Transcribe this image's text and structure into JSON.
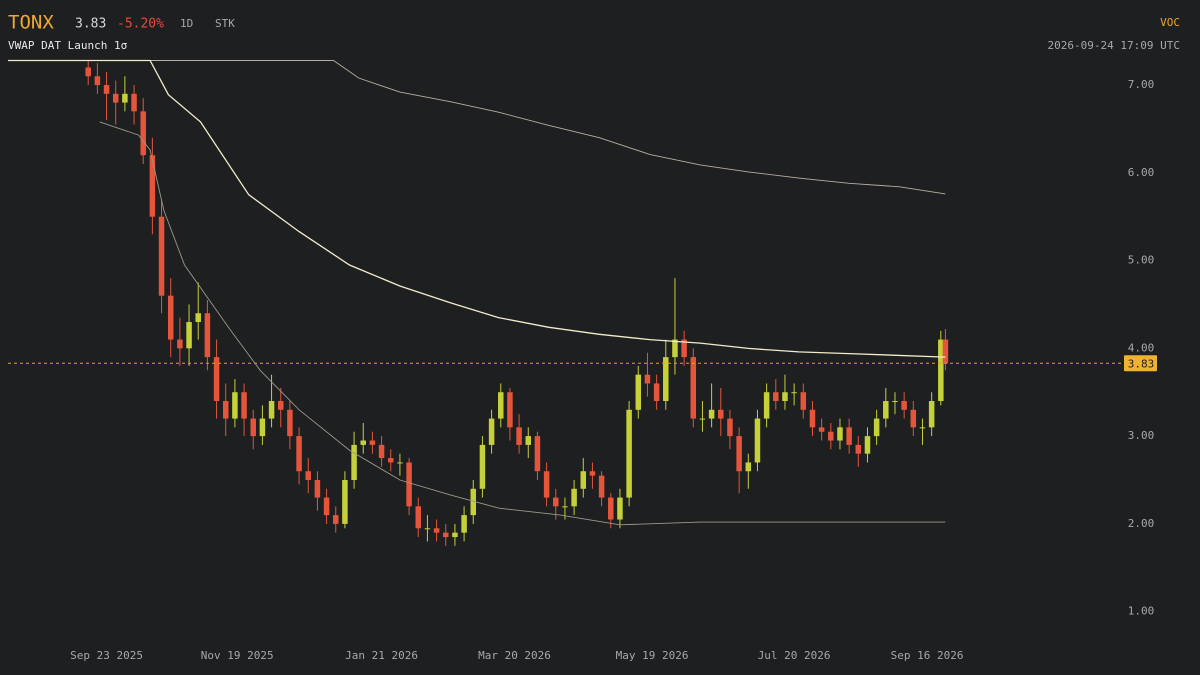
{
  "chart_data": {
    "type": "candlestick",
    "symbol": "TONX",
    "last_price": 3.83,
    "change": "-5.20%",
    "interval": "1D",
    "asset_class": "STK",
    "indicator": "VWAP DAT Launch 1σ",
    "source": "VOC",
    "timestamp": "2026-09-24 17:09 UTC",
    "up_color": "#c5d13a",
    "down_color": "#e5553b",
    "x": [
      -8,
      -4,
      0,
      4,
      8,
      12,
      16,
      20,
      24,
      28,
      32,
      36,
      40,
      44,
      48,
      52,
      56,
      60,
      64,
      68,
      72,
      76,
      80,
      84,
      88,
      92,
      96,
      100,
      104,
      108,
      112,
      116,
      120,
      124,
      128,
      132,
      136,
      140,
      144,
      148,
      152,
      156,
      160,
      164,
      168,
      172,
      176,
      180,
      184,
      188,
      192,
      196,
      200,
      204,
      208,
      212,
      216,
      220,
      224,
      228,
      232,
      236,
      240,
      244,
      248,
      252,
      256,
      260,
      264,
      268,
      272,
      276,
      280,
      284,
      288,
      292,
      296,
      300,
      304,
      308,
      312,
      316,
      320,
      324,
      328,
      332,
      336,
      340,
      344,
      348,
      352,
      356,
      360,
      364,
      366
    ],
    "open": [
      7.2,
      7.1,
      7.0,
      6.9,
      6.8,
      6.9,
      6.7,
      6.2,
      5.5,
      4.6,
      4.1,
      4.0,
      4.3,
      4.4,
      3.9,
      3.4,
      3.2,
      3.5,
      3.2,
      3.0,
      3.2,
      3.4,
      3.3,
      3.0,
      2.6,
      2.5,
      2.3,
      2.1,
      2.0,
      2.5,
      2.9,
      2.95,
      2.9,
      2.75,
      2.7,
      2.7,
      2.2,
      1.95,
      1.95,
      1.9,
      1.85,
      1.9,
      2.1,
      2.4,
      2.9,
      3.2,
      3.5,
      3.1,
      2.9,
      3.0,
      2.6,
      2.3,
      2.2,
      2.2,
      2.4,
      2.6,
      2.55,
      2.3,
      2.05,
      2.3,
      3.3,
      3.7,
      3.6,
      3.4,
      3.9,
      4.1,
      3.9,
      3.2,
      3.2,
      3.3,
      3.2,
      3.0,
      2.6,
      2.7,
      3.2,
      3.5,
      3.4,
      3.5,
      3.5,
      3.3,
      3.1,
      3.05,
      2.95,
      3.1,
      2.9,
      2.8,
      3.0,
      3.2,
      3.4,
      3.4,
      3.3,
      3.1,
      3.1,
      3.4,
      4.1
    ],
    "high": [
      7.28,
      7.25,
      7.15,
      7.05,
      7.1,
      7.0,
      6.85,
      6.4,
      5.7,
      4.8,
      4.35,
      4.5,
      4.75,
      4.55,
      4.1,
      3.6,
      3.65,
      3.6,
      3.3,
      3.35,
      3.7,
      3.55,
      3.4,
      3.1,
      2.75,
      2.6,
      2.4,
      2.2,
      2.6,
      3.05,
      3.15,
      3.05,
      3.0,
      2.85,
      2.8,
      2.75,
      2.3,
      2.1,
      2.05,
      2.0,
      2.0,
      2.2,
      2.5,
      3.0,
      3.3,
      3.6,
      3.55,
      3.25,
      3.1,
      3.05,
      2.7,
      2.4,
      2.3,
      2.5,
      2.75,
      2.7,
      2.6,
      2.35,
      2.4,
      3.4,
      3.8,
      3.95,
      3.7,
      4.1,
      4.8,
      4.2,
      4.0,
      3.4,
      3.6,
      3.55,
      3.3,
      3.1,
      2.8,
      3.3,
      3.6,
      3.65,
      3.7,
      3.6,
      3.6,
      3.4,
      3.2,
      3.15,
      3.2,
      3.2,
      3.0,
      3.1,
      3.3,
      3.55,
      3.5,
      3.5,
      3.4,
      3.2,
      3.5,
      4.2,
      4.22
    ],
    "low": [
      7.0,
      6.9,
      6.6,
      6.55,
      6.7,
      6.55,
      6.1,
      5.3,
      4.4,
      3.9,
      3.8,
      3.8,
      4.1,
      3.75,
      3.2,
      3.0,
      3.1,
      3.0,
      2.85,
      2.9,
      3.1,
      3.1,
      2.85,
      2.45,
      2.35,
      2.15,
      2.0,
      1.9,
      1.95,
      2.4,
      2.8,
      2.8,
      2.65,
      2.6,
      2.55,
      2.1,
      1.85,
      1.8,
      1.8,
      1.75,
      1.75,
      1.8,
      2.0,
      2.3,
      2.8,
      3.1,
      2.95,
      2.8,
      2.75,
      2.5,
      2.2,
      2.05,
      2.05,
      2.1,
      2.3,
      2.4,
      2.2,
      1.95,
      1.95,
      2.2,
      3.2,
      3.45,
      3.3,
      3.3,
      3.7,
      3.8,
      3.1,
      3.05,
      3.1,
      3.0,
      2.85,
      2.35,
      2.4,
      2.6,
      3.1,
      3.3,
      3.3,
      3.35,
      3.2,
      3.0,
      2.95,
      2.85,
      2.85,
      2.8,
      2.65,
      2.7,
      2.9,
      3.1,
      3.25,
      3.2,
      3.0,
      2.9,
      3.0,
      3.35,
      3.75
    ],
    "close": [
      7.1,
      7.0,
      6.9,
      6.8,
      6.9,
      6.7,
      6.2,
      5.5,
      4.6,
      4.1,
      4.0,
      4.3,
      4.4,
      3.9,
      3.4,
      3.2,
      3.5,
      3.2,
      3.0,
      3.2,
      3.4,
      3.3,
      3.0,
      2.6,
      2.5,
      2.3,
      2.1,
      2.0,
      2.5,
      2.9,
      2.95,
      2.9,
      2.75,
      2.7,
      2.7,
      2.2,
      1.95,
      1.95,
      1.9,
      1.85,
      1.9,
      2.1,
      2.4,
      2.9,
      3.2,
      3.5,
      3.1,
      2.9,
      3.0,
      2.6,
      2.3,
      2.2,
      2.2,
      2.4,
      2.6,
      2.55,
      2.3,
      2.05,
      2.3,
      3.3,
      3.7,
      3.6,
      3.4,
      3.9,
      4.1,
      3.9,
      3.2,
      3.2,
      3.3,
      3.2,
      3.0,
      2.6,
      2.7,
      3.2,
      3.5,
      3.4,
      3.5,
      3.5,
      3.3,
      3.1,
      3.05,
      2.95,
      3.1,
      2.9,
      2.8,
      3.0,
      3.2,
      3.4,
      3.4,
      3.3,
      3.1,
      3.1,
      3.4,
      4.1,
      3.83
    ],
    "lines": [
      {
        "color": "#b5b09c",
        "x": [
          -43,
          99,
          110,
          128,
          150,
          171,
          193,
          215,
          237,
          259,
          280,
          302,
          324,
          346,
          366
        ],
        "values": [
          7.28,
          7.28,
          7.08,
          6.92,
          6.81,
          6.69,
          6.54,
          6.4,
          6.21,
          6.09,
          6.01,
          5.94,
          5.88,
          5.84,
          5.76
        ]
      },
      {
        "color": "#f2eccb",
        "x": [
          -43,
          19,
          27,
          41,
          62,
          84,
          106,
          128,
          150,
          171,
          193,
          215,
          237,
          259,
          280,
          302,
          324,
          366
        ],
        "values": [
          7.28,
          7.28,
          6.89,
          6.58,
          5.75,
          5.33,
          4.95,
          4.71,
          4.52,
          4.35,
          4.24,
          4.16,
          4.1,
          4.06,
          4.0,
          3.96,
          3.94,
          3.9
        ]
      },
      {
        "color": "#9c9889",
        "x": [
          -3,
          14,
          19,
          25,
          34,
          54,
          67,
          84,
          106,
          128,
          150,
          171,
          198,
          224,
          259,
          366
        ],
        "values": [
          6.58,
          6.43,
          6.26,
          5.57,
          4.95,
          4.21,
          3.75,
          3.3,
          2.84,
          2.5,
          2.33,
          2.18,
          2.1,
          1.99,
          2.02,
          2.02
        ]
      }
    ],
    "xlim": [
      -43,
      440
    ],
    "ylim": [
      0.7,
      7.3
    ],
    "xticks": [
      {
        "value": 0,
        "label": "Sep 23 2025"
      },
      {
        "value": 57,
        "label": "Nov 19 2025"
      },
      {
        "value": 120,
        "label": "Jan 21 2026"
      },
      {
        "value": 178,
        "label": "Mar 20 2026"
      },
      {
        "value": 238,
        "label": "May 19 2026"
      },
      {
        "value": 300,
        "label": "Jul 20 2026"
      },
      {
        "value": 358,
        "label": "Sep 16 2026"
      }
    ],
    "yticks": [
      {
        "value": 1,
        "label": "1.00"
      },
      {
        "value": 2,
        "label": "2.00"
      },
      {
        "value": 3,
        "label": "3.00"
      },
      {
        "value": 4,
        "label": "4.00"
      },
      {
        "value": 5,
        "label": "5.00"
      },
      {
        "value": 6,
        "label": "6.00"
      },
      {
        "value": 7,
        "label": "7.00"
      }
    ],
    "grid": false
  }
}
